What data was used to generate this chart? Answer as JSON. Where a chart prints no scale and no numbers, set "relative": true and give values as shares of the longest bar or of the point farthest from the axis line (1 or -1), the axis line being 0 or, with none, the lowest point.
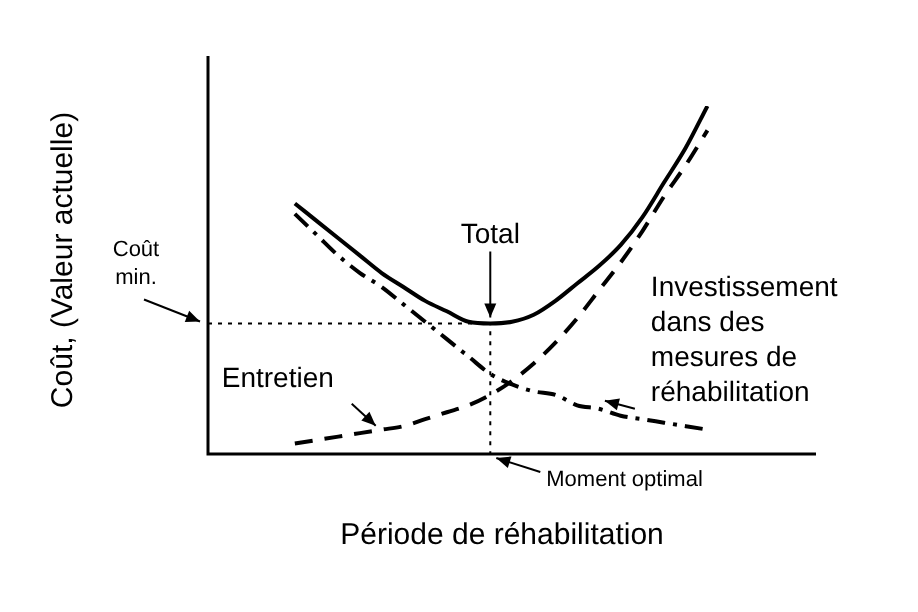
{
  "chart_data": {
    "type": "line",
    "relative": true,
    "xlabel": "Période de réhabilitation",
    "ylabel": "Coût, (Valeur actuelle)",
    "categories": [
      null,
      null,
      null,
      null,
      null,
      null,
      null,
      null,
      null,
      null,
      null,
      null,
      null,
      null,
      null,
      null,
      null,
      null,
      null,
      null,
      null,
      null,
      null,
      null,
      null,
      null,
      null,
      null,
      null
    ],
    "series": [
      {
        "name": "Total",
        "color": "#000000",
        "line_style": "solid",
        "values": [
          null,
          null,
          null,
          null,
          0.72,
          0.67,
          0.62,
          0.57,
          0.52,
          0.48,
          0.44,
          0.41,
          0.38,
          0.375,
          0.38,
          0.4,
          0.44,
          0.49,
          0.54,
          0.6,
          0.68,
          0.78,
          0.88,
          1,
          null,
          null,
          null,
          null,
          null
        ]
      },
      {
        "name": "Entretien",
        "color": "#000000",
        "line_style": "dashed",
        "values": [
          null,
          null,
          null,
          null,
          0.03,
          0.04,
          0.05,
          0.06,
          0.07,
          0.08,
          0.1,
          0.12,
          0.14,
          0.17,
          0.21,
          0.26,
          0.32,
          0.39,
          0.47,
          0.55,
          0.64,
          0.74,
          0.83,
          0.93,
          null,
          null,
          null,
          null,
          null
        ]
      },
      {
        "name": "Investissement dans des mesures de réhabilitation",
        "color": "#000000",
        "line_style": "dashdot",
        "values": [
          null,
          null,
          null,
          null,
          0.69,
          0.63,
          0.57,
          0.52,
          0.48,
          0.43,
          0.38,
          0.33,
          0.28,
          0.23,
          0.2,
          0.18,
          0.17,
          0.14,
          0.13,
          0.11,
          0.1,
          0.09,
          0.08,
          0.07,
          null,
          null,
          null,
          null,
          null
        ]
      }
    ],
    "ref_lines": [
      {
        "axis": "y",
        "value": 0.375,
        "label": "Coût min.",
        "line_style": "dotted",
        "color": "#000000"
      }
    ],
    "annotations": [
      "Moment optimal"
    ],
    "legend": false,
    "marker": "none"
  }
}
